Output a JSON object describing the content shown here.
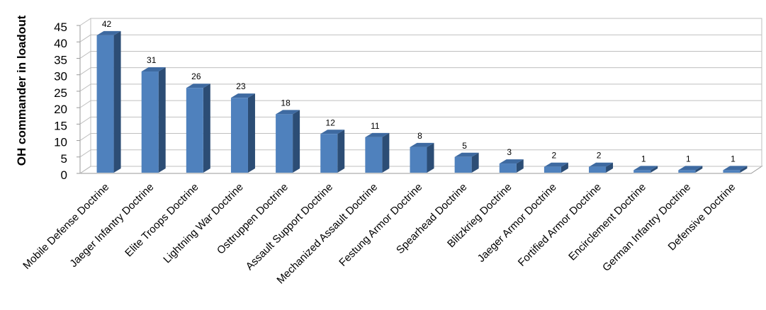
{
  "chart_data": {
    "type": "bar3d",
    "y_label": "OH commander in loadout",
    "categories": [
      "Mobile Defense Doctrine",
      "Jaeger Infantry Doctrine",
      "Elite Troops Doctrine",
      "Lightning War Doctrine",
      "Osttruppen Doctrine",
      "Assault Support Doctrine",
      "Mechanized Assault Doctrine",
      "Festung Armor Doctrine",
      "Spearhead Doctrine",
      "Blitzkrieg Doctrine",
      "Jaeger Armor Doctrine",
      "Fortified Armor Doctrine",
      "Encirclement Doctrine",
      "German Infantry Doctrine",
      "Defensive Doctrine"
    ],
    "values": [
      42,
      31,
      26,
      23,
      18,
      12,
      11,
      8,
      5,
      3,
      2,
      2,
      1,
      1,
      1
    ],
    "color": "#4f81bd",
    "ylim": [
      0,
      45
    ],
    "yticks": [
      0,
      5,
      10,
      15,
      20,
      25,
      30,
      35,
      40,
      45
    ],
    "grid": true
  }
}
